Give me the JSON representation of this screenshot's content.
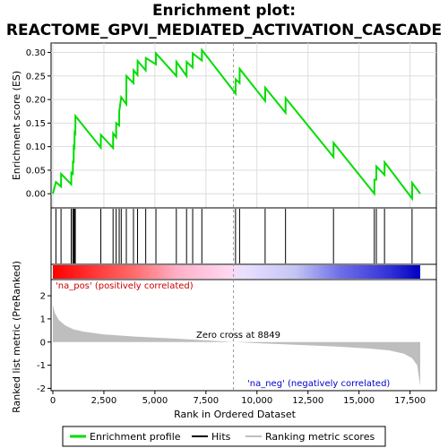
{
  "chart_data": {
    "type": "line",
    "title_line1": "Enrichment plot:",
    "title_line2": "REACTOME_GPVI_MEDIATED_ACTIVATION_CASCADE",
    "top_ylabel": "Enrichment score (ES)",
    "bottom_ylabel": "Ranked list metric (PreRanked)",
    "xlabel": "Rank in Ordered Dataset",
    "xlim": [
      0,
      18000
    ],
    "x_ticks": [
      0,
      2500,
      5000,
      7500,
      10000,
      12500,
      15000,
      17500
    ],
    "x_tick_labels": [
      "0",
      "2,500",
      "5,000",
      "7,500",
      "10,000",
      "12,500",
      "15,000",
      "17,500"
    ],
    "es_ylim": [
      -0.03,
      0.32
    ],
    "es_ticks": [
      0.0,
      0.05,
      0.1,
      0.15,
      0.2,
      0.25,
      0.3
    ],
    "es_tick_labels": [
      "0.00",
      "0.05",
      "0.10",
      "0.15",
      "0.20",
      "0.25",
      "0.30"
    ],
    "metric_ylim": [
      -2.1,
      2.7
    ],
    "metric_ticks": [
      -2,
      -1,
      0,
      1,
      2
    ],
    "metric_tick_labels": [
      "-2",
      "-1",
      "0",
      "1",
      "2"
    ],
    "hits": [
      150,
      400,
      900,
      980,
      1020,
      1060,
      1100,
      2350,
      2950,
      3100,
      3250,
      3350,
      3600,
      3950,
      4150,
      4550,
      5050,
      6050,
      6550,
      6850,
      7300,
      8950,
      9150,
      10400,
      11400,
      13750,
      15750,
      15850,
      16250,
      17600
    ],
    "es_curve": [
      [
        0,
        0.0
      ],
      [
        150,
        0.025
      ],
      [
        400,
        0.015
      ],
      [
        405,
        0.042
      ],
      [
        900,
        0.02
      ],
      [
        905,
        0.047
      ],
      [
        980,
        0.04
      ],
      [
        985,
        0.07
      ],
      [
        1020,
        0.065
      ],
      [
        1025,
        0.1
      ],
      [
        1060,
        0.098
      ],
      [
        1065,
        0.13
      ],
      [
        1100,
        0.128
      ],
      [
        1105,
        0.165
      ],
      [
        2350,
        0.098
      ],
      [
        2355,
        0.125
      ],
      [
        2950,
        0.097
      ],
      [
        2955,
        0.128
      ],
      [
        3100,
        0.12
      ],
      [
        3105,
        0.15
      ],
      [
        3250,
        0.145
      ],
      [
        3255,
        0.175
      ],
      [
        3350,
        0.205
      ],
      [
        3600,
        0.19
      ],
      [
        3605,
        0.25
      ],
      [
        3950,
        0.235
      ],
      [
        3955,
        0.262
      ],
      [
        4150,
        0.252
      ],
      [
        4155,
        0.282
      ],
      [
        4550,
        0.262
      ],
      [
        4555,
        0.288
      ],
      [
        5050,
        0.275
      ],
      [
        5055,
        0.298
      ],
      [
        6050,
        0.25
      ],
      [
        6055,
        0.28
      ],
      [
        6550,
        0.25
      ],
      [
        6555,
        0.28
      ],
      [
        6850,
        0.268
      ],
      [
        6855,
        0.298
      ],
      [
        7300,
        0.283
      ],
      [
        7305,
        0.305
      ],
      [
        8950,
        0.213
      ],
      [
        8955,
        0.243
      ],
      [
        9150,
        0.235
      ],
      [
        9155,
        0.265
      ],
      [
        10400,
        0.197
      ],
      [
        10405,
        0.225
      ],
      [
        11400,
        0.172
      ],
      [
        11405,
        0.203
      ],
      [
        13750,
        0.078
      ],
      [
        13755,
        0.108
      ],
      [
        15750,
        0.0
      ],
      [
        15755,
        0.03
      ],
      [
        15850,
        0.03
      ],
      [
        15855,
        0.058
      ],
      [
        16250,
        0.04
      ],
      [
        16255,
        0.067
      ],
      [
        17600,
        -0.01
      ],
      [
        17605,
        0.023
      ],
      [
        18000,
        0.0
      ]
    ],
    "metric_profile": [
      [
        0,
        1.6
      ],
      [
        100,
        1.25
      ],
      [
        300,
        0.95
      ],
      [
        600,
        0.72
      ],
      [
        1000,
        0.55
      ],
      [
        1500,
        0.45
      ],
      [
        2500,
        0.33
      ],
      [
        4000,
        0.24
      ],
      [
        6000,
        0.15
      ],
      [
        8000,
        0.05
      ],
      [
        8849,
        0.0
      ],
      [
        10000,
        -0.05
      ],
      [
        12000,
        -0.12
      ],
      [
        14000,
        -0.2
      ],
      [
        15500,
        -0.28
      ],
      [
        16500,
        -0.36
      ],
      [
        17200,
        -0.5
      ],
      [
        17600,
        -0.7
      ],
      [
        17850,
        -1.0
      ],
      [
        17950,
        -1.6
      ],
      [
        18000,
        -1.9
      ]
    ],
    "zero_cross_rank": 8849,
    "zero_cross_label": "Zero cross at 8849",
    "pos_label": "'na_pos' (positively correlated)",
    "neg_label": "'na_neg' (negatively correlated)",
    "legend": [
      "Enrichment profile",
      "Hits",
      "Ranking metric scores"
    ],
    "legend_placement": "bottom",
    "grid": true,
    "colors": {
      "es_line": "#00dd00",
      "hit": "#000000",
      "metric_fill": "#bebebe",
      "pos_text": "#cc0000",
      "neg_text": "#0000cc",
      "grid": "#dddddd",
      "zero_line": "#999999",
      "band_pos": "#ff0000",
      "band_neg": "#0000ff"
    }
  }
}
